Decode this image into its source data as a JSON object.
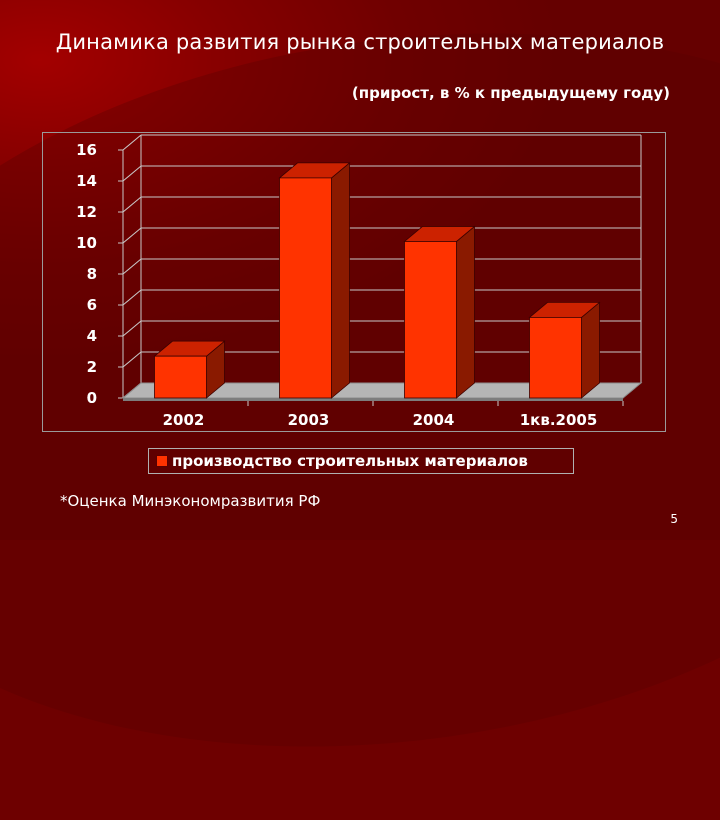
{
  "slide": {
    "title": "Динамика развития рынка строительных материалов",
    "subtitle": "(прирост, в % к предыдущему году)",
    "footnote": "*Оценка Минэкономразвития РФ",
    "page_number": "5"
  },
  "colors": {
    "background": "#6e0000",
    "bar_front": "#ff3300",
    "bar_side": "#8a1a00",
    "bar_top": "#cc2200",
    "floor": "#b5b5b5",
    "gridline": "#c8c8c8"
  },
  "chart_data": {
    "type": "bar",
    "style": "3d-column",
    "categories": [
      "2002",
      "2003",
      "2004",
      "1кв.2005"
    ],
    "series": [
      {
        "name": "производство строительных материалов",
        "values": [
          2.7,
          14.2,
          10.1,
          5.2
        ]
      }
    ],
    "ylim": [
      0,
      16
    ],
    "yticks": [
      "0",
      "2",
      "4",
      "6",
      "8",
      "10",
      "12",
      "14",
      "16"
    ],
    "grid": true,
    "legend_position": "bottom"
  }
}
